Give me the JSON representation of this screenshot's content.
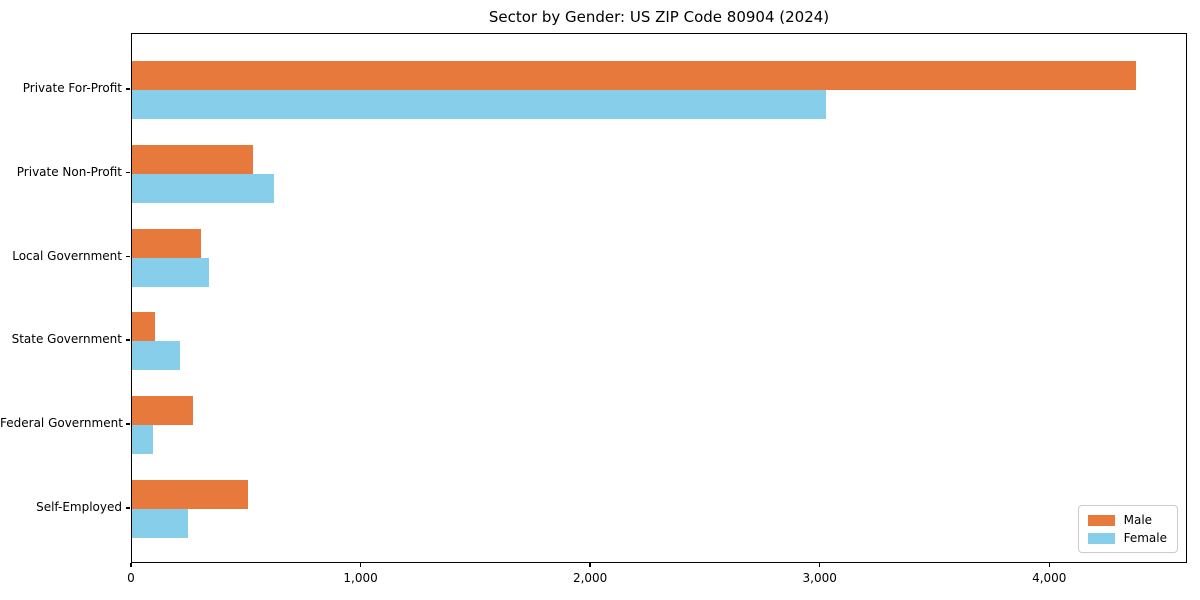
{
  "title": "Sector by Gender: US ZIP Code 80904 (2024)",
  "chart_data": {
    "type": "bar",
    "orientation": "horizontal",
    "title": "Sector by Gender: US ZIP Code 80904 (2024)",
    "categories": [
      "Private For-Profit",
      "Private Non-Profit",
      "Local Government",
      "State Government",
      "Federal Government",
      "Self-Employed"
    ],
    "series": [
      {
        "name": "Male",
        "color": "#e8793d",
        "values": [
          4380,
          530,
          300,
          100,
          265,
          505
        ]
      },
      {
        "name": "Female",
        "color": "#87ceeb",
        "values": [
          3030,
          620,
          335,
          210,
          90,
          245
        ]
      }
    ],
    "xlabel": "",
    "ylabel": "",
    "xlim": [
      0,
      4600
    ],
    "xticks": [
      0,
      1000,
      2000,
      3000,
      4000
    ],
    "xtick_labels": [
      "0",
      "1,000",
      "2,000",
      "3,000",
      "4,000"
    ],
    "grid": false,
    "legend_position": "lower right",
    "legend_border_color": "#cccccc",
    "spine_color": "#000000",
    "background_color": "#ffffff"
  }
}
